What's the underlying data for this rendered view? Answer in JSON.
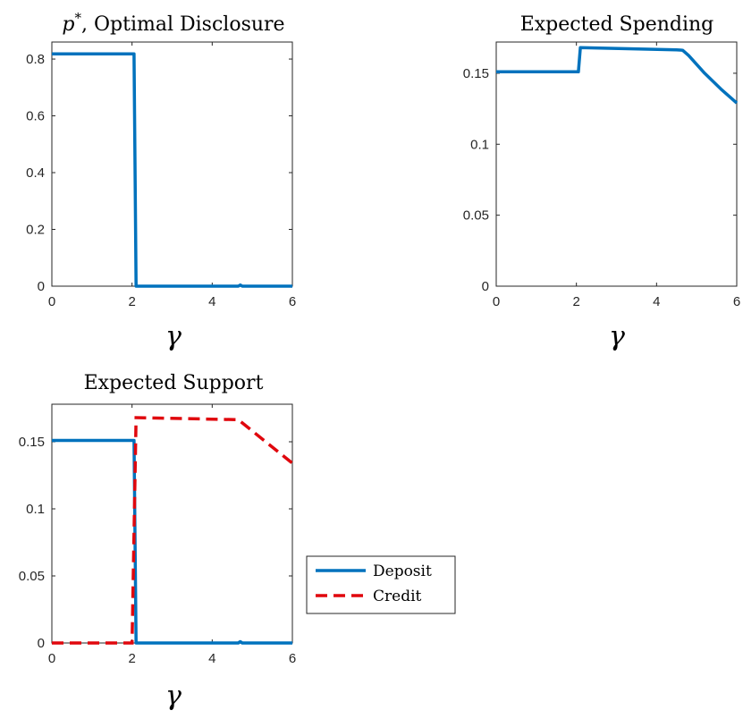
{
  "chart_data": [
    {
      "type": "line",
      "title_main": "p",
      "title_sup": "*",
      "title_rest": ", Optimal Disclosure",
      "xlabel": "γ",
      "ylabel": "",
      "xlim": [
        0,
        6
      ],
      "ylim": [
        0,
        0.86
      ],
      "xticks": [
        "0",
        "2",
        "4",
        "6"
      ],
      "yticks": [
        "0",
        "0.2",
        "0.4",
        "0.6",
        "0.8"
      ],
      "grid": false,
      "series": [
        {
          "color": "#0072BD",
          "dash": "solid",
          "x": [
            0,
            2.05,
            2.1,
            4.65,
            4.7,
            4.75,
            6
          ],
          "y": [
            0.818,
            0.818,
            0,
            0,
            0.004,
            0,
            0
          ]
        }
      ]
    },
    {
      "type": "line",
      "title": "Expected Spending",
      "xlabel": "γ",
      "ylabel": "",
      "xlim": [
        0,
        6
      ],
      "ylim": [
        0,
        0.172
      ],
      "xticks": [
        "0",
        "2",
        "4",
        "6"
      ],
      "yticks": [
        "0",
        "0.05",
        "0.1",
        "0.15"
      ],
      "grid": false,
      "series": [
        {
          "color": "#0072BD",
          "dash": "solid",
          "x": [
            0,
            2.05,
            2.1,
            4.5,
            4.65,
            4.8,
            5.2,
            5.6,
            6
          ],
          "y": [
            0.151,
            0.151,
            0.168,
            0.1665,
            0.1662,
            0.1625,
            0.15,
            0.139,
            0.129
          ]
        }
      ]
    },
    {
      "type": "line",
      "title": "Expected Support",
      "xlabel": "γ",
      "ylabel": "",
      "xlim": [
        0,
        6
      ],
      "ylim": [
        0,
        0.178
      ],
      "xticks": [
        "0",
        "2",
        "4",
        "6"
      ],
      "yticks": [
        "0",
        "0.05",
        "0.1",
        "0.15"
      ],
      "grid": false,
      "legend": {
        "position": "outside-right",
        "entries": [
          "Deposit",
          "Credit"
        ]
      },
      "series": [
        {
          "name": "Deposit",
          "color": "#0072BD",
          "dash": "solid",
          "x": [
            0,
            2.05,
            2.1,
            4.65,
            4.7,
            4.75,
            6
          ],
          "y": [
            0.151,
            0.151,
            0,
            0,
            0.001,
            0,
            0
          ]
        },
        {
          "name": "Credit",
          "color": "#E0070D",
          "dash": "dashed",
          "x": [
            0,
            2.0,
            2.1,
            4.65,
            6
          ],
          "y": [
            0,
            0,
            0.168,
            0.1665,
            0.134
          ]
        }
      ]
    }
  ]
}
